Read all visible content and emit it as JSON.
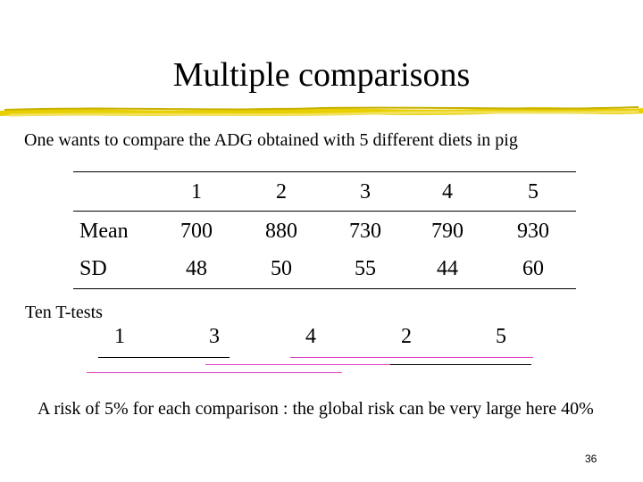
{
  "title": "Multiple comparisons",
  "intro": "One wants to compare the ADG obtained with 5 different diets in pig",
  "table": {
    "headers": [
      "1",
      "2",
      "3",
      "4",
      "5"
    ],
    "rows": [
      {
        "label": "Mean",
        "values": [
          "700",
          "880",
          "730",
          "790",
          "930"
        ]
      },
      {
        "label": "SD",
        "values": [
          "48",
          "50",
          "55",
          "44",
          "60"
        ]
      }
    ]
  },
  "ttests": {
    "label": "Ten  T-tests",
    "ordered_diets": [
      "1",
      "3",
      "4",
      "2",
      "5"
    ]
  },
  "risk_note": "A risk of 5% for each comparison : the global risk can be very large here 40%",
  "page_number": "36",
  "colors": {
    "comparison_line_pink": "#e040c0",
    "comparison_line_black": "#000000",
    "underline_yellow": "#e8d000"
  }
}
